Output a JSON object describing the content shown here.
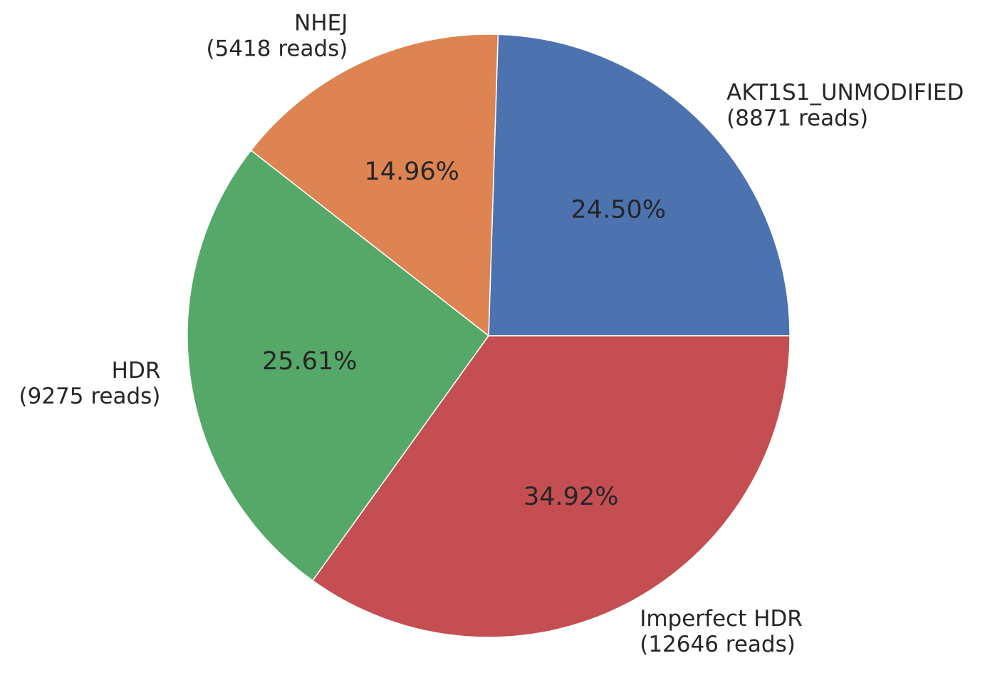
{
  "chart_data": {
    "type": "pie",
    "title": "",
    "slices": [
      {
        "label": "AKT1S1_UNMODIFIED",
        "reads_label": "(8871 reads)",
        "value": 8871,
        "percent_label": "24.50%",
        "color": "#4c72b0"
      },
      {
        "label": "NHEJ",
        "reads_label": "(5418 reads)",
        "value": 5418,
        "percent_label": "14.96%",
        "color": "#dd8452"
      },
      {
        "label": "HDR",
        "reads_label": "(9275 reads)",
        "value": 9275,
        "percent_label": "25.61%",
        "color": "#55a868"
      },
      {
        "label": "Imperfect HDR",
        "reads_label": "(12646 reads)",
        "value": 12646,
        "percent_label": "34.92%",
        "color": "#c44e52"
      }
    ],
    "start_angle_deg": 0,
    "direction": "counterclockwise",
    "edge_color": "#ffffff",
    "legend": "none"
  }
}
